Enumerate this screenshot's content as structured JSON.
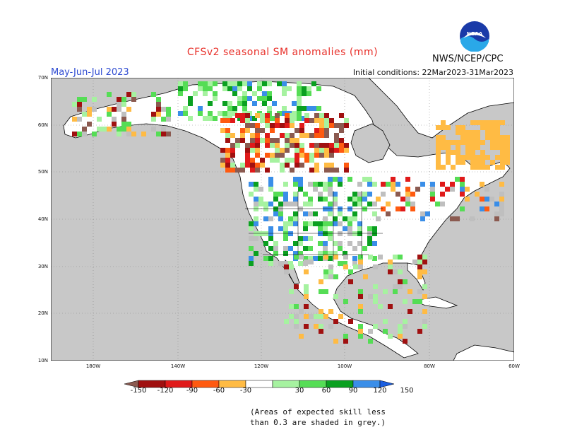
{
  "header": {
    "title": "CFSv2 seasonal SM anomalies (mm)",
    "agency": "NWS/NCEP/CPC",
    "season": "May-Jun-Jul 2023",
    "initial_conditions": "Initial conditions: 22Mar2023-31Mar2023",
    "logo_text": "NOAA"
  },
  "map": {
    "lat_labels": [
      "70N",
      "60N",
      "50N",
      "40N",
      "30N",
      "20N",
      "10N"
    ],
    "lon_labels": [
      "180W",
      "140W",
      "120W",
      "100W",
      "80W",
      "60W"
    ],
    "colors": {
      "ocean": "#c8c8c8",
      "land": "#ffffff",
      "grey_skill": "#bfbfbf",
      "brown": "#8b5a50",
      "dark_red": "#a01010",
      "red": "#e01a1a",
      "orange": "#ff5a10",
      "light_orange": "#ffbb44",
      "light_green": "#a6f2a0",
      "green": "#55dd55",
      "dark_green": "#0aa020",
      "blue": "#3a8ee8"
    }
  },
  "legend": {
    "labels": [
      "-150",
      "-120",
      "-90",
      "-60",
      "-30",
      "30",
      "60",
      "90",
      "120",
      "150"
    ],
    "colors": [
      "#8b5a50",
      "#a01010",
      "#e01a1a",
      "#ff5a10",
      "#ffbb44",
      "#ffffff",
      "#a6f2a0",
      "#55dd55",
      "#0aa020",
      "#3a8ee8",
      "#1a5ee0"
    ]
  },
  "note": {
    "line1": "(Areas of expected skill less",
    "line2": "than 0.3 are shaded in grey.)"
  }
}
